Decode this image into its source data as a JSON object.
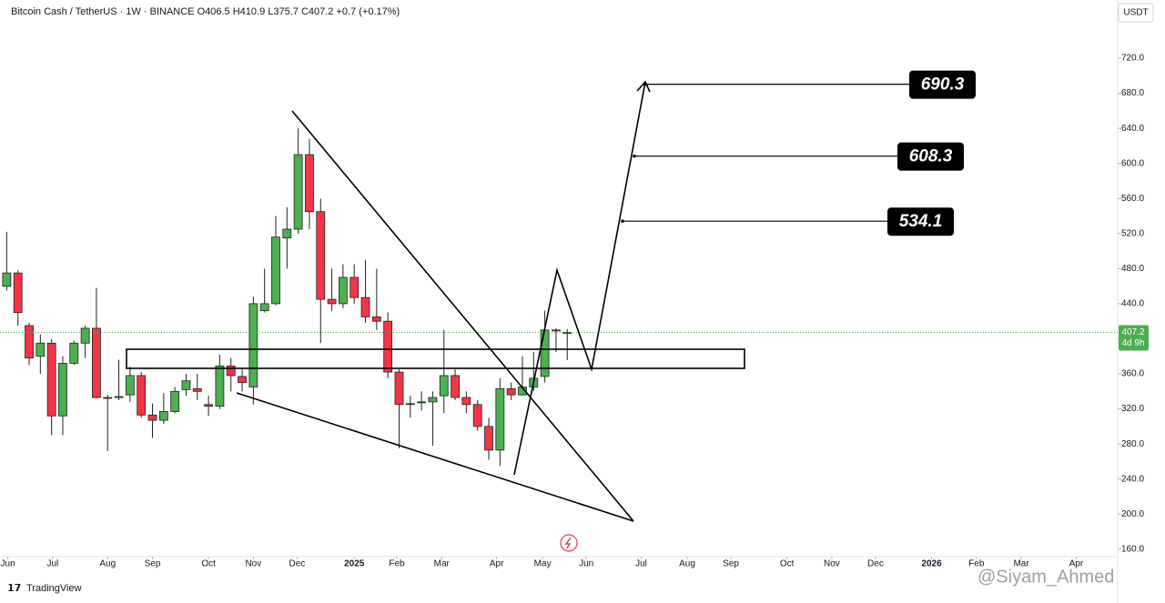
{
  "chart_data": {
    "type": "candlestick",
    "title": "Bitcoin Cash / TetherUS · 1W · BINANCE  O406.5  H410.9  L375.7  C407.2  +0.7 (+0.17%)",
    "currency": "USDT",
    "up_color": "#4caf50",
    "down_color": "#f23645",
    "ylim": [
      151.5,
      786.4
    ],
    "yticks": [
      {
        "value": 160,
        "label": "160.0"
      },
      {
        "value": 200,
        "label": "200.0"
      },
      {
        "value": 240,
        "label": "240.0"
      },
      {
        "value": 280,
        "label": "280.0"
      },
      {
        "value": 320,
        "label": "320.0"
      },
      {
        "value": 360,
        "label": "360.0"
      },
      {
        "value": 400,
        "label": "400.0"
      },
      {
        "value": 440,
        "label": "440.0"
      },
      {
        "value": 480,
        "label": "480.0"
      },
      {
        "value": 520,
        "label": "520.0"
      },
      {
        "value": 560,
        "label": "560.0"
      },
      {
        "value": 600,
        "label": "600.0"
      },
      {
        "value": 640,
        "label": "640.0"
      },
      {
        "value": 680,
        "label": "680.0"
      },
      {
        "value": 720,
        "label": "720.0"
      }
    ],
    "xlim": [
      -0.6,
      99.1
    ],
    "xticks": [
      {
        "value": 0.1,
        "label": "Jun"
      },
      {
        "value": 4.1,
        "label": "Jul"
      },
      {
        "value": 9.0,
        "label": "Aug"
      },
      {
        "value": 13.0,
        "label": "Sep"
      },
      {
        "value": 18.0,
        "label": "Oct"
      },
      {
        "value": 22.0,
        "label": "Nov"
      },
      {
        "value": 25.9,
        "label": "Dec"
      },
      {
        "value": 31.0,
        "label": "2025"
      },
      {
        "value": 34.8,
        "label": "Feb"
      },
      {
        "value": 38.8,
        "label": "Mar"
      },
      {
        "value": 43.7,
        "label": "Apr"
      },
      {
        "value": 47.8,
        "label": "May"
      },
      {
        "value": 51.7,
        "label": "Jun"
      },
      {
        "value": 56.6,
        "label": "Jul"
      },
      {
        "value": 60.7,
        "label": "Aug"
      },
      {
        "value": 64.6,
        "label": "Sep"
      },
      {
        "value": 69.6,
        "label": "Oct"
      },
      {
        "value": 73.6,
        "label": "Nov"
      },
      {
        "value": 77.5,
        "label": "Dec"
      },
      {
        "value": 82.5,
        "label": "2026"
      },
      {
        "value": 86.5,
        "label": "Feb"
      },
      {
        "value": 90.5,
        "label": "Mar"
      },
      {
        "value": 95.4,
        "label": "Apr"
      }
    ],
    "open": [
      460,
      475,
      415,
      380,
      395,
      312,
      372,
      395,
      412,
      333,
      333,
      336,
      358,
      313,
      307,
      317,
      342,
      343,
      325,
      323,
      369,
      357,
      345,
      432,
      440,
      515,
      525,
      610,
      545,
      445,
      440,
      470,
      447,
      425,
      420,
      362,
      326,
      327,
      328,
      335,
      358,
      333,
      325,
      300,
      273,
      343,
      336,
      345,
      357,
      410,
      406.5
    ],
    "high": [
      522,
      478,
      418,
      405,
      400,
      380,
      398,
      415,
      458,
      336,
      376,
      368,
      362,
      326,
      338,
      345,
      360,
      360,
      335,
      382,
      378,
      366,
      448,
      480,
      540,
      550,
      640,
      628,
      560,
      480,
      485,
      485,
      490,
      480,
      430,
      365,
      335,
      340,
      340,
      410,
      365,
      340,
      330,
      310,
      355,
      350,
      380,
      385,
      432,
      412,
      410.9
    ],
    "low": [
      455,
      415,
      370,
      360,
      290,
      290,
      370,
      378,
      332,
      272,
      330,
      328,
      310,
      287,
      303,
      315,
      335,
      330,
      312,
      320,
      340,
      340,
      325,
      430,
      438,
      480,
      520,
      525,
      395,
      432,
      435,
      440,
      418,
      410,
      355,
      275,
      310,
      318,
      278,
      315,
      330,
      315,
      295,
      262,
      255,
      330,
      335,
      340,
      350,
      385,
      375.7
    ],
    "close": [
      475,
      430,
      378,
      395,
      312,
      372,
      395,
      412,
      333,
      332,
      334,
      358,
      313,
      307,
      317,
      340,
      352,
      340,
      323,
      369,
      358,
      350,
      440,
      440,
      516,
      525,
      610,
      545,
      445,
      440,
      470,
      447,
      425,
      420,
      362,
      325,
      325,
      328,
      333,
      358,
      333,
      325,
      300,
      273,
      343,
      336,
      345,
      355,
      410,
      409,
      407.2
    ],
    "last_price": 407.2,
    "countdown": "4d 9h",
    "annotations": [
      {
        "value": 690.3,
        "label": "690.3"
      },
      {
        "value": 608.3,
        "label": "608.3"
      },
      {
        "value": 534.1,
        "label": "534.1"
      }
    ],
    "brand": "TradingView",
    "watermark": "@Siyam_Ahmed"
  }
}
